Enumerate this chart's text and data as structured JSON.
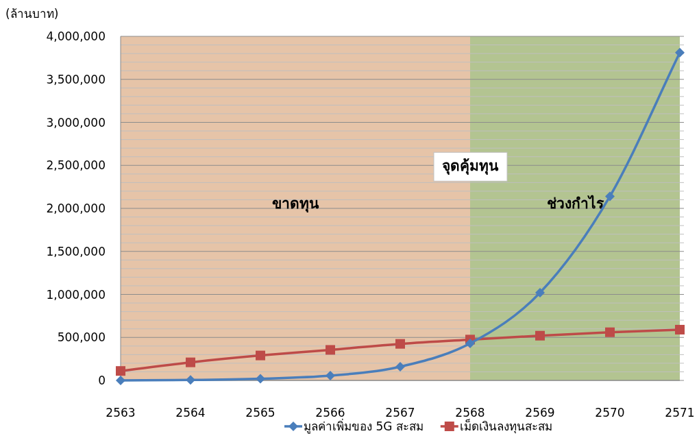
{
  "chart_data": {
    "type": "line",
    "ylabel": "(ล้านบาท)",
    "x": [
      2563,
      2564,
      2565,
      2566,
      2567,
      2568,
      2569,
      2570,
      2571
    ],
    "xlim": [
      2563,
      2571
    ],
    "xticks": [
      2563,
      2564,
      2565,
      2566,
      2567,
      2568,
      2569,
      2570,
      2571
    ],
    "ylim": [
      0,
      4000000
    ],
    "yticks": [
      {
        "value": 0,
        "label": "0"
      },
      {
        "value": 100000,
        "label": null
      },
      {
        "value": 200000,
        "label": null
      },
      {
        "value": 300000,
        "label": null
      },
      {
        "value": 400000,
        "label": null
      },
      {
        "value": 500000,
        "label": "500,000"
      },
      {
        "value": 600000,
        "label": null
      },
      {
        "value": 700000,
        "label": null
      },
      {
        "value": 800000,
        "label": null
      },
      {
        "value": 900000,
        "label": null
      },
      {
        "value": 1000000,
        "label": "1,000,000"
      },
      {
        "value": 1100000,
        "label": null
      },
      {
        "value": 1200000,
        "label": null
      },
      {
        "value": 1300000,
        "label": null
      },
      {
        "value": 1400000,
        "label": null
      },
      {
        "value": 1500000,
        "label": "1,500,000"
      },
      {
        "value": 1600000,
        "label": null
      },
      {
        "value": 1700000,
        "label": null
      },
      {
        "value": 1800000,
        "label": null
      },
      {
        "value": 1900000,
        "label": null
      },
      {
        "value": 2000000,
        "label": "2,000,000"
      },
      {
        "value": 2100000,
        "label": null
      },
      {
        "value": 2200000,
        "label": null
      },
      {
        "value": 2300000,
        "label": null
      },
      {
        "value": 2400000,
        "label": null
      },
      {
        "value": 2500000,
        "label": "2,500,000"
      },
      {
        "value": 2600000,
        "label": null
      },
      {
        "value": 2700000,
        "label": null
      },
      {
        "value": 2800000,
        "label": null
      },
      {
        "value": 2900000,
        "label": null
      },
      {
        "value": 3000000,
        "label": "3,000,000"
      },
      {
        "value": 3100000,
        "label": null
      },
      {
        "value": 3200000,
        "label": null
      },
      {
        "value": 3300000,
        "label": null
      },
      {
        "value": 3400000,
        "label": null
      },
      {
        "value": 3500000,
        "label": "3,500,000"
      },
      {
        "value": 3600000,
        "label": null
      },
      {
        "value": 3700000,
        "label": null
      },
      {
        "value": 3800000,
        "label": null
      },
      {
        "value": 3900000,
        "label": null
      },
      {
        "value": 4000000,
        "label": "4,000,000"
      }
    ],
    "series": [
      {
        "name": "มูลค่าเพิ่มของ 5G สะสม",
        "color": "#4a7ebb",
        "marker": "diamond",
        "values": [
          0,
          5000,
          20000,
          55000,
          160000,
          430000,
          1020000,
          2140000,
          3810000
        ]
      },
      {
        "name": "เม็ดเงินลงทุนสะสม",
        "color": "#be4b48",
        "marker": "square",
        "values": [
          110000,
          210000,
          290000,
          355000,
          425000,
          475000,
          520000,
          560000,
          590000
        ]
      }
    ],
    "bands": [
      {
        "axis": "x",
        "from": 2563,
        "to": 2568,
        "label": "ขาดทุน",
        "color": "#e6c4a8"
      },
      {
        "axis": "x",
        "from": 2568,
        "to": 2571,
        "label": "ช่วงกำไร",
        "color": "#b3c491"
      }
    ],
    "annotations": [
      {
        "text": "จุดคุ้มทุน",
        "x": 2568,
        "y": 2500000
      }
    ],
    "grid": "y",
    "legend": "bottom",
    "line_style": "solid"
  }
}
